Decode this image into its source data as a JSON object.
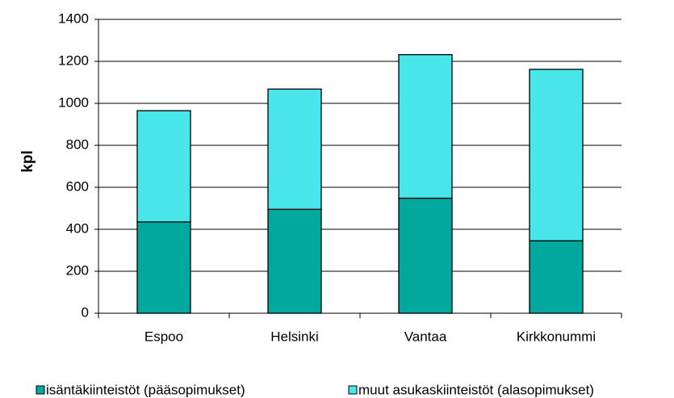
{
  "chart_data": {
    "type": "stacked_bar",
    "y_label": "kpl",
    "categories": [
      "Espoo",
      "Helsinki",
      "Vantaa",
      "Kirkkonummi"
    ],
    "series": [
      {
        "name": "isäntäkiinteistöt (pääsopimukset)",
        "color": "#00a89e",
        "values": [
          435,
          495,
          548,
          345
        ]
      },
      {
        "name": "muut asukaskiinteistöt (alasopimukset)",
        "color": "#48e6ea",
        "values": [
          530,
          573,
          684,
          817
        ]
      }
    ],
    "ylim": [
      0,
      1400
    ],
    "yticks": [
      0,
      200,
      400,
      600,
      800,
      1000,
      1200,
      1400
    ],
    "grid": true,
    "legend": "bottom"
  }
}
